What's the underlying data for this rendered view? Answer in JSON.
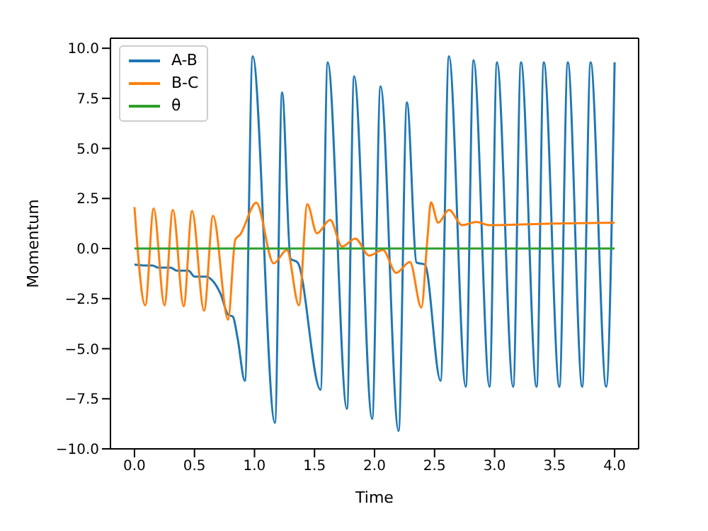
{
  "chart_data": {
    "type": "line",
    "xlabel": "Time",
    "ylabel": "Momentum",
    "xlim": [
      -0.2,
      4.2
    ],
    "ylim": [
      -10,
      10.5
    ],
    "xticks": [
      {
        "value": 0,
        "label": "0.0"
      },
      {
        "value": 0.5,
        "label": "0.5"
      },
      {
        "value": 1,
        "label": "1.0"
      },
      {
        "value": 1.5,
        "label": "1.5"
      },
      {
        "value": 2,
        "label": "2.0"
      },
      {
        "value": 2.5,
        "label": "2.5"
      },
      {
        "value": 3,
        "label": "3.0"
      },
      {
        "value": 3.5,
        "label": "3.5"
      },
      {
        "value": 4,
        "label": "4.0"
      }
    ],
    "yticks": [
      {
        "value": -10,
        "label": "−10.0"
      },
      {
        "value": -7.5,
        "label": "−7.5"
      },
      {
        "value": -5,
        "label": "−5.0"
      },
      {
        "value": -2.5,
        "label": "−2.5"
      },
      {
        "value": 0,
        "label": "0.0"
      },
      {
        "value": 2.5,
        "label": "2.5"
      },
      {
        "value": 5,
        "label": "5.0"
      },
      {
        "value": 7.5,
        "label": "7.5"
      },
      {
        "value": 10,
        "label": "10.0"
      }
    ],
    "legend": "top left",
    "grid": false,
    "marker": "none",
    "line_style": "solid",
    "series": [
      {
        "name": "A-B",
        "color": "#1f77b4",
        "x": [
          0,
          0.1,
          0.15,
          0.2,
          0.3,
          0.35,
          0.45,
          0.5,
          0.6,
          0.65,
          0.72,
          0.78,
          0.82,
          0.86,
          0.92,
          0.985,
          1.17,
          1.23,
          1.3,
          1.36,
          1.55,
          1.61,
          1.77,
          1.83,
          1.98,
          2.05,
          2.2,
          2.27,
          2.35,
          2.42,
          2.55,
          2.62,
          2.76,
          2.825,
          2.958,
          3.02,
          3.155,
          3.22,
          3.35,
          3.41,
          3.54,
          3.61,
          3.73,
          3.8,
          3.93,
          4.0
        ],
        "values": [
          -0.8,
          -0.85,
          -0.85,
          -0.95,
          -0.95,
          -1.1,
          -1.1,
          -1.4,
          -1.4,
          -1.6,
          -2.3,
          -3.3,
          -3.4,
          -4.5,
          -6.6,
          9.6,
          -8.7,
          7.8,
          -0.5,
          -0.7,
          -7.05,
          9.3,
          -8,
          8.6,
          -8.5,
          8.1,
          -9.1,
          7.3,
          -0.7,
          -0.8,
          -6.6,
          9.6,
          -6.9,
          9.4,
          -6.9,
          9.3,
          -6.9,
          9.3,
          -6.9,
          9.3,
          -6.9,
          9.3,
          -6.9,
          9.3,
          -6.9,
          9.3
        ]
      },
      {
        "name": "B-C",
        "color": "#ff7f0e",
        "x": [
          0,
          0.09,
          0.16,
          0.25,
          0.32,
          0.41,
          0.48,
          0.58,
          0.655,
          0.78,
          0.84,
          0.88,
          1.015,
          1.16,
          1.27,
          1.37,
          1.44,
          1.52,
          1.63,
          1.73,
          1.84,
          1.955,
          2.07,
          2.18,
          2.295,
          2.39,
          2.44,
          2.47,
          2.53,
          2.62,
          2.73,
          2.85,
          2.95,
          3.5,
          4.0
        ],
        "values": [
          2.07,
          -2.83,
          2,
          -2.83,
          1.93,
          -2.88,
          1.88,
          -3.1,
          1.64,
          -3.55,
          0.45,
          0.69,
          2.29,
          -0.74,
          -0.07,
          -2.83,
          2.21,
          0.76,
          1.43,
          0.1,
          0.5,
          -0.35,
          -0.07,
          -1.21,
          -0.67,
          -2.95,
          0.45,
          2.31,
          1.29,
          1.93,
          1.17,
          1.33,
          1.17,
          1.25,
          1.29
        ]
      },
      {
        "name": "θ",
        "color": "#2ca02c",
        "x": [
          0,
          4.0
        ],
        "values": [
          0,
          0
        ]
      }
    ]
  }
}
